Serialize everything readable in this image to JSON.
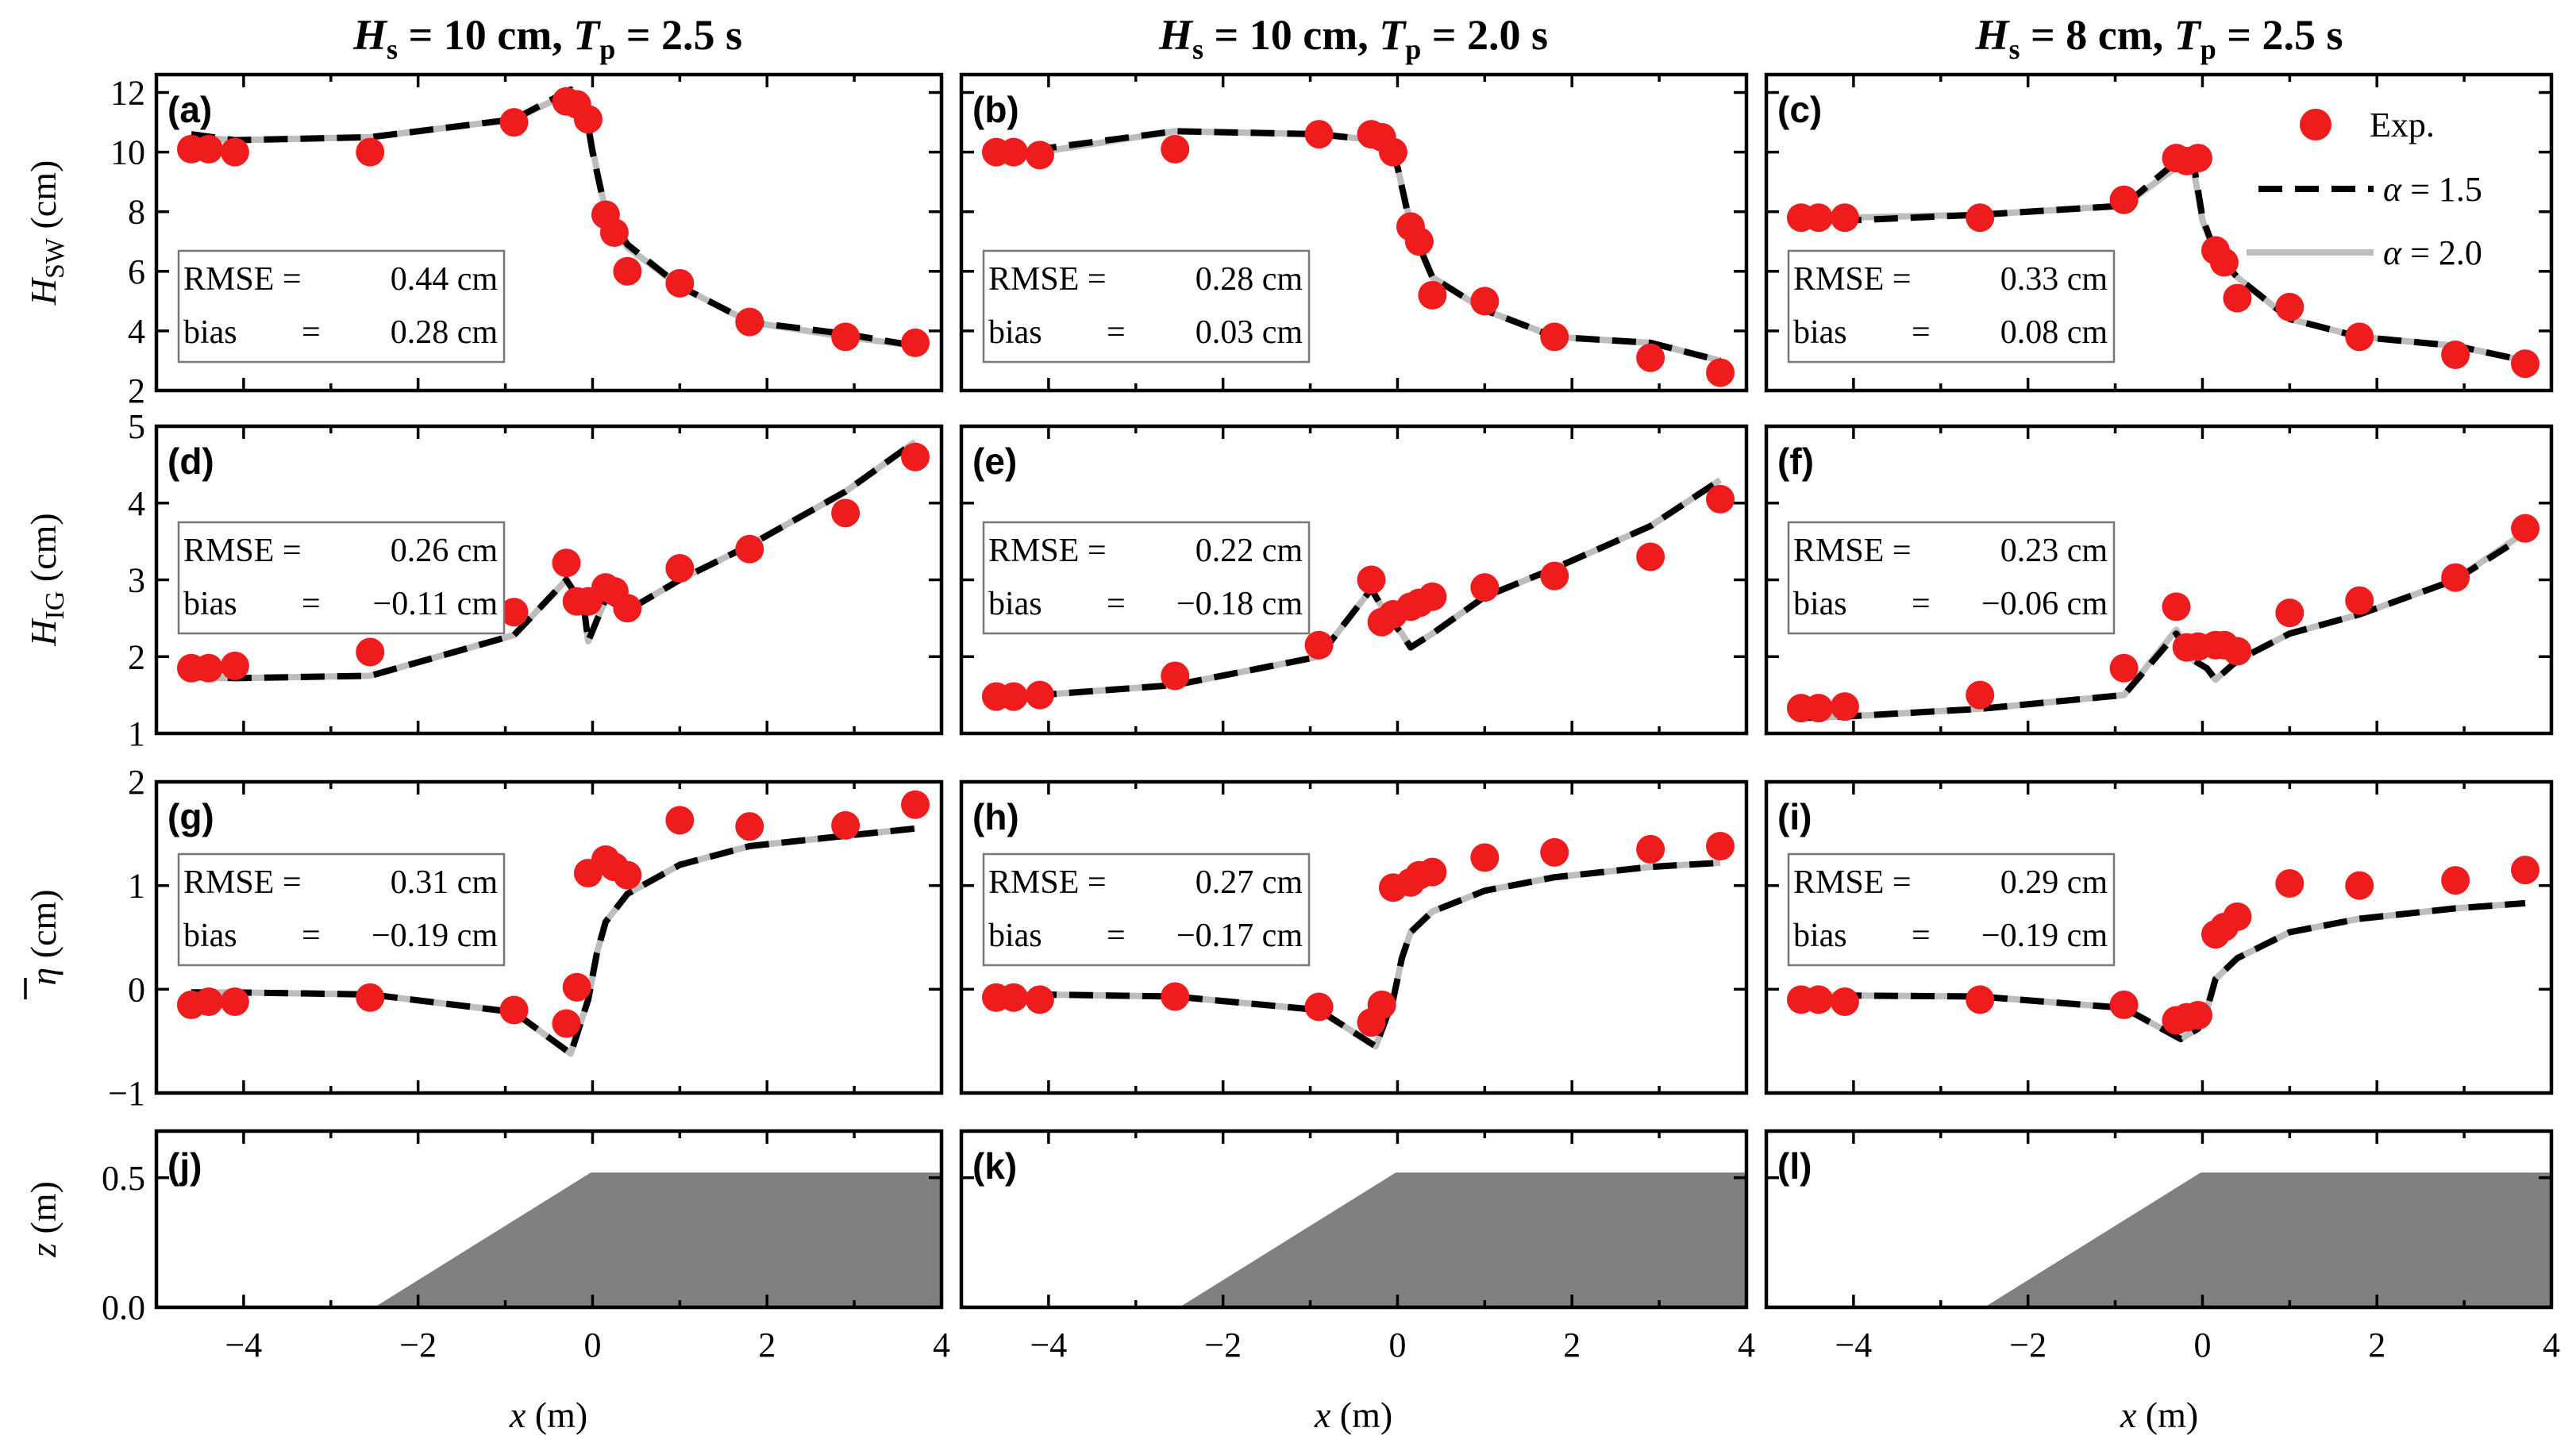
{
  "columns": [
    {
      "title": {
        "H": "H",
        "Hsub": "s",
        "Hval": " = 10 cm, ",
        "T": "T",
        "Tsub": "p",
        "Tval": " = 2.5 s"
      }
    },
    {
      "title": {
        "H": "H",
        "Hsub": "s",
        "Hval": " = 10 cm, ",
        "T": "T",
        "Tsub": "p",
        "Tval": " = 2.0 s"
      }
    },
    {
      "title": {
        "H": "H",
        "Hsub": "s",
        "Hval": " = 8 cm, ",
        "T": "T",
        "Tsub": "p",
        "Tval": " = 2.5 s"
      }
    }
  ],
  "rows": [
    {
      "id": "hsw",
      "ylabel_main": "H",
      "ylabel_sub": "SW",
      "ylabel_unit": " (cm)",
      "ylim": [
        2,
        12.6
      ],
      "yticks": [
        2,
        4,
        6,
        8,
        10,
        12
      ]
    },
    {
      "id": "hig",
      "ylabel_main": "H",
      "ylabel_sub": "IG",
      "ylabel_unit": " (cm)",
      "ylim": [
        1,
        5
      ],
      "yticks": [
        1,
        2,
        3,
        4,
        5
      ]
    },
    {
      "id": "eta",
      "ylabel_main": "η",
      "ylabel_sub": "",
      "ylabel_unit": " (cm)",
      "ylim": [
        -1,
        2
      ],
      "yticks": [
        -1,
        0,
        1,
        2
      ]
    },
    {
      "id": "z",
      "ylabel_main": "z",
      "ylabel_sub": "",
      "ylabel_unit": "  (m)",
      "ylim": [
        0,
        0.68
      ],
      "yticks": [
        0.0,
        0.5
      ],
      "ytick_labels": [
        "0.0",
        "0.5"
      ]
    }
  ],
  "xaxis": {
    "label_main": "x",
    "label_unit": " (m)",
    "xlim": [
      -5,
      4
    ],
    "xticks": [
      -4,
      -2,
      0,
      2,
      4
    ],
    "xtick_labels": [
      "−4",
      "−2",
      "0",
      "2",
      "4"
    ]
  },
  "legend": {
    "exp": "Exp.",
    "alpha15_main": "α",
    "alpha15_val": " = 1.5",
    "alpha20_main": "α",
    "alpha20_val": " = 2.0",
    "placement": "top-right of panel (c)"
  },
  "colors": {
    "exp": "#ee1c1c",
    "alpha15": "#000000",
    "alpha20": "#bdbdbd",
    "bed": "#808080"
  },
  "stat_labels": {
    "rmse": "RMSE =",
    "bias": "bias",
    "bias_eq": "="
  },
  "panels": [
    {
      "letter": "(a)",
      "rmse": "0.44 cm",
      "bias": "0.28 cm"
    },
    {
      "letter": "(b)",
      "rmse": "0.28 cm",
      "bias": "0.03 cm"
    },
    {
      "letter": "(c)",
      "rmse": "0.33 cm",
      "bias": "0.08 cm"
    },
    {
      "letter": "(d)",
      "rmse": "0.26 cm",
      "bias": "−0.11 cm"
    },
    {
      "letter": "(e)",
      "rmse": "0.22 cm",
      "bias": "−0.18 cm"
    },
    {
      "letter": "(f)",
      "rmse": "0.23 cm",
      "bias": "−0.06 cm"
    },
    {
      "letter": "(g)",
      "rmse": "0.31 cm",
      "bias": "−0.19 cm"
    },
    {
      "letter": "(h)",
      "rmse": "0.27 cm",
      "bias": "−0.17 cm"
    },
    {
      "letter": "(i)",
      "rmse": "0.29 cm",
      "bias": "−0.19 cm"
    },
    {
      "letter": "(j)"
    },
    {
      "letter": "(k)"
    },
    {
      "letter": "(l)"
    }
  ],
  "chart_data": {
    "type": "scatter",
    "description_grid": "4 rows x 3 columns of panels sharing x axis (m)",
    "bathymetry": {
      "x": [
        -5.0,
        -2.5,
        -0.02,
        4.0
      ],
      "z": [
        0.0,
        0.0,
        0.52,
        0.52
      ]
    },
    "panels": [
      {
        "letter": "(a)",
        "exp": {
          "x": [
            -4.6,
            -4.4,
            -4.1,
            -2.55,
            -0.9,
            -0.3,
            -0.18,
            -0.05,
            0.15,
            0.25,
            0.4,
            1.0,
            1.8,
            2.9,
            3.7
          ],
          "y": [
            10.1,
            10.1,
            10.0,
            10.0,
            11.0,
            11.7,
            11.6,
            11.1,
            7.9,
            7.3,
            6.0,
            5.6,
            4.3,
            3.8,
            3.6
          ]
        },
        "alpha15": {
          "x": [
            -4.6,
            -4.1,
            -2.55,
            -0.9,
            -0.25,
            -0.1,
            0.0,
            0.15,
            0.4,
            1.0,
            1.8,
            2.9,
            3.7
          ],
          "y": [
            10.6,
            10.4,
            10.5,
            11.1,
            12.1,
            11.7,
            10.0,
            8.0,
            6.9,
            5.5,
            4.3,
            3.9,
            3.5
          ]
        },
        "alpha20": {
          "x": [
            -4.6,
            -4.1,
            -2.55,
            -0.9,
            -0.25,
            -0.1,
            0.0,
            0.15,
            0.4,
            1.0,
            1.8,
            2.9,
            3.7
          ],
          "y": [
            10.5,
            10.4,
            10.5,
            11.1,
            12.0,
            11.8,
            10.1,
            8.0,
            6.8,
            5.5,
            4.3,
            3.8,
            3.5
          ]
        }
      },
      {
        "letter": "(b)",
        "exp": {
          "x": [
            -4.6,
            -4.4,
            -4.1,
            -2.55,
            -0.9,
            -0.3,
            -0.18,
            -0.05,
            0.15,
            0.25,
            0.4,
            1.0,
            1.8,
            2.9,
            3.7
          ],
          "y": [
            10.0,
            10.0,
            9.9,
            10.1,
            10.6,
            10.6,
            10.5,
            10.0,
            7.5,
            7.0,
            5.2,
            5.0,
            3.8,
            3.1,
            2.6
          ]
        },
        "alpha15": {
          "x": [
            -4.6,
            -4.1,
            -2.55,
            -0.9,
            -0.25,
            -0.1,
            0.0,
            0.15,
            0.4,
            1.0,
            1.8,
            2.9,
            3.7
          ],
          "y": [
            10.1,
            10.1,
            10.7,
            10.6,
            10.4,
            10.3,
            9.5,
            7.5,
            5.8,
            4.7,
            3.8,
            3.6,
            3.0
          ]
        },
        "alpha20": {
          "x": [
            -4.6,
            -4.1,
            -2.55,
            -0.9,
            -0.25,
            -0.1,
            0.0,
            0.15,
            0.4,
            1.0,
            1.8,
            2.9,
            3.7
          ],
          "y": [
            10.0,
            10.0,
            10.7,
            10.6,
            10.4,
            10.3,
            9.5,
            7.6,
            5.8,
            4.7,
            3.8,
            3.6,
            3.0
          ]
        }
      },
      {
        "letter": "(c)",
        "exp": {
          "x": [
            -4.6,
            -4.4,
            -4.1,
            -2.55,
            -0.9,
            -0.3,
            -0.18,
            -0.05,
            0.15,
            0.25,
            0.4,
            1.0,
            1.8,
            2.9,
            3.7
          ],
          "y": [
            7.8,
            7.8,
            7.8,
            7.8,
            8.4,
            9.8,
            9.7,
            9.8,
            6.7,
            6.3,
            5.1,
            4.8,
            3.8,
            3.2,
            2.9
          ]
        },
        "alpha15": {
          "x": [
            -4.6,
            -4.1,
            -2.55,
            -0.9,
            -0.25,
            -0.1,
            0.0,
            0.15,
            0.4,
            1.0,
            1.8,
            2.9,
            3.7
          ],
          "y": [
            7.8,
            7.7,
            7.9,
            8.2,
            9.8,
            9.6,
            7.8,
            6.6,
            5.8,
            4.4,
            3.8,
            3.5,
            3.0
          ]
        },
        "alpha20": {
          "x": [
            -4.6,
            -4.1,
            -2.55,
            -0.9,
            -0.25,
            -0.1,
            0.0,
            0.15,
            0.4,
            1.0,
            1.8,
            2.9,
            3.7
          ],
          "y": [
            7.9,
            7.8,
            7.9,
            8.2,
            9.6,
            9.4,
            7.7,
            6.6,
            5.8,
            4.4,
            3.8,
            3.5,
            3.0
          ]
        }
      },
      {
        "letter": "(d)",
        "exp": {
          "x": [
            -4.6,
            -4.4,
            -4.1,
            -2.55,
            -0.9,
            -0.3,
            -0.18,
            -0.05,
            0.15,
            0.25,
            0.4,
            1.0,
            1.8,
            2.9,
            3.7
          ],
          "y": [
            1.85,
            1.85,
            1.88,
            2.06,
            2.58,
            3.22,
            2.72,
            2.72,
            2.9,
            2.85,
            2.63,
            3.15,
            3.4,
            3.87,
            4.6
          ]
        },
        "alpha15": {
          "x": [
            -4.6,
            -4.1,
            -2.55,
            -0.9,
            -0.3,
            -0.1,
            -0.05,
            0.15,
            0.4,
            1.0,
            1.8,
            2.9,
            3.7
          ],
          "y": [
            1.74,
            1.72,
            1.75,
            2.28,
            3.0,
            2.65,
            2.2,
            2.75,
            2.6,
            3.0,
            3.45,
            4.15,
            4.8
          ]
        },
        "alpha20": {
          "x": [
            -4.6,
            -4.1,
            -2.55,
            -0.9,
            -0.3,
            -0.1,
            -0.05,
            0.15,
            0.4,
            1.0,
            1.8,
            2.9,
            3.7
          ],
          "y": [
            1.72,
            1.72,
            1.75,
            2.28,
            3.0,
            2.65,
            2.2,
            2.75,
            2.6,
            3.0,
            3.45,
            4.15,
            4.8
          ]
        }
      },
      {
        "letter": "(e)",
        "exp": {
          "x": [
            -4.6,
            -4.4,
            -4.1,
            -2.55,
            -0.9,
            -0.3,
            -0.18,
            -0.05,
            0.15,
            0.25,
            0.4,
            1.0,
            1.8,
            2.9,
            3.7
          ],
          "y": [
            1.48,
            1.48,
            1.5,
            1.75,
            2.15,
            3.0,
            2.45,
            2.55,
            2.65,
            2.7,
            2.78,
            2.9,
            3.05,
            3.3,
            4.05
          ]
        },
        "alpha15": {
          "x": [
            -4.6,
            -4.1,
            -2.55,
            -0.9,
            -0.3,
            -0.1,
            0.05,
            0.15,
            0.4,
            1.0,
            1.8,
            2.9,
            3.7
          ],
          "y": [
            1.48,
            1.5,
            1.63,
            2.0,
            2.88,
            2.5,
            2.3,
            2.12,
            2.3,
            2.78,
            3.15,
            3.7,
            4.3
          ]
        },
        "alpha20": {
          "x": [
            -4.6,
            -4.1,
            -2.55,
            -0.9,
            -0.3,
            -0.1,
            0.05,
            0.15,
            0.4,
            1.0,
            1.8,
            2.9,
            3.7
          ],
          "y": [
            1.48,
            1.5,
            1.63,
            2.0,
            2.88,
            2.5,
            2.3,
            2.12,
            2.3,
            2.78,
            3.15,
            3.7,
            4.3
          ]
        }
      },
      {
        "letter": "(f)",
        "exp": {
          "x": [
            -4.6,
            -4.4,
            -4.1,
            -2.55,
            -0.9,
            -0.3,
            -0.18,
            -0.05,
            0.15,
            0.25,
            0.4,
            1.0,
            1.8,
            2.9,
            3.7
          ],
          "y": [
            1.33,
            1.33,
            1.35,
            1.5,
            1.85,
            2.65,
            2.12,
            2.13,
            2.15,
            2.15,
            2.07,
            2.57,
            2.73,
            3.03,
            3.67
          ]
        },
        "alpha15": {
          "x": [
            -4.6,
            -4.1,
            -2.55,
            -0.9,
            -0.3,
            -0.1,
            0.05,
            0.15,
            0.4,
            1.0,
            1.8,
            2.9,
            3.7
          ],
          "y": [
            1.2,
            1.22,
            1.32,
            1.5,
            2.3,
            1.95,
            1.85,
            1.7,
            1.95,
            2.3,
            2.55,
            3.0,
            3.58
          ]
        },
        "alpha20": {
          "x": [
            -4.6,
            -4.1,
            -2.55,
            -0.9,
            -0.3,
            -0.1,
            0.05,
            0.15,
            0.4,
            1.0,
            1.8,
            2.9,
            3.7
          ],
          "y": [
            1.2,
            1.22,
            1.32,
            1.5,
            2.35,
            1.95,
            1.85,
            1.7,
            1.95,
            2.3,
            2.55,
            3.0,
            3.62
          ]
        }
      },
      {
        "letter": "(g)",
        "exp": {
          "x": [
            -4.6,
            -4.4,
            -4.1,
            -2.55,
            -0.9,
            -0.3,
            -0.18,
            -0.05,
            0.15,
            0.25,
            0.4,
            1.0,
            1.8,
            2.9,
            3.7
          ],
          "y": [
            -0.15,
            -0.12,
            -0.12,
            -0.08,
            -0.2,
            -0.33,
            0.02,
            1.12,
            1.25,
            1.18,
            1.1,
            1.63,
            1.57,
            1.58,
            1.78
          ]
        },
        "alpha15": {
          "x": [
            -4.6,
            -4.1,
            -2.55,
            -0.9,
            -0.25,
            -0.05,
            0.05,
            0.15,
            0.4,
            1.0,
            1.8,
            2.9,
            3.7
          ],
          "y": [
            -0.03,
            -0.03,
            -0.05,
            -0.22,
            -0.62,
            -0.1,
            0.35,
            0.65,
            0.92,
            1.2,
            1.38,
            1.48,
            1.55
          ]
        },
        "alpha20": {
          "x": [
            -4.6,
            -4.1,
            -2.55,
            -0.9,
            -0.25,
            -0.05,
            0.05,
            0.15,
            0.4,
            1.0,
            1.8,
            2.9,
            3.7
          ],
          "y": [
            -0.03,
            -0.03,
            -0.05,
            -0.22,
            -0.62,
            -0.1,
            0.35,
            0.65,
            0.92,
            1.2,
            1.38,
            1.48,
            1.55
          ]
        }
      },
      {
        "letter": "(h)",
        "exp": {
          "x": [
            -4.6,
            -4.4,
            -4.1,
            -2.55,
            -0.9,
            -0.3,
            -0.18,
            -0.05,
            0.15,
            0.25,
            0.4,
            1.0,
            1.8,
            2.9,
            3.7
          ],
          "y": [
            -0.08,
            -0.08,
            -0.1,
            -0.07,
            -0.17,
            -0.32,
            -0.15,
            0.98,
            1.03,
            1.1,
            1.13,
            1.27,
            1.32,
            1.35,
            1.38
          ]
        },
        "alpha15": {
          "x": [
            -4.6,
            -4.1,
            -2.55,
            -0.9,
            -0.25,
            -0.05,
            0.05,
            0.15,
            0.4,
            1.0,
            1.8,
            2.9,
            3.7
          ],
          "y": [
            -0.05,
            -0.05,
            -0.07,
            -0.2,
            -0.55,
            -0.1,
            0.3,
            0.55,
            0.75,
            0.95,
            1.08,
            1.18,
            1.22
          ]
        },
        "alpha20": {
          "x": [
            -4.6,
            -4.1,
            -2.55,
            -0.9,
            -0.25,
            -0.05,
            0.05,
            0.15,
            0.4,
            1.0,
            1.8,
            2.9,
            3.7
          ],
          "y": [
            -0.05,
            -0.05,
            -0.07,
            -0.2,
            -0.55,
            -0.1,
            0.3,
            0.55,
            0.75,
            0.95,
            1.08,
            1.18,
            1.22
          ]
        }
      },
      {
        "letter": "(i)",
        "exp": {
          "x": [
            -4.6,
            -4.4,
            -4.1,
            -2.55,
            -0.9,
            -0.3,
            -0.18,
            -0.05,
            0.15,
            0.25,
            0.4,
            1.0,
            1.8,
            2.9,
            3.7
          ],
          "y": [
            -0.1,
            -0.1,
            -0.12,
            -0.1,
            -0.15,
            -0.3,
            -0.27,
            -0.25,
            0.53,
            0.6,
            0.7,
            1.02,
            1.0,
            1.05,
            1.15
          ]
        },
        "alpha15": {
          "x": [
            -4.6,
            -4.1,
            -2.55,
            -0.9,
            -0.25,
            -0.05,
            0.05,
            0.15,
            0.4,
            1.0,
            1.8,
            2.9,
            3.7
          ],
          "y": [
            -0.05,
            -0.06,
            -0.07,
            -0.18,
            -0.48,
            -0.38,
            -0.2,
            0.1,
            0.3,
            0.55,
            0.68,
            0.78,
            0.83
          ]
        },
        "alpha20": {
          "x": [
            -4.6,
            -4.1,
            -2.55,
            -0.9,
            -0.25,
            -0.05,
            0.05,
            0.15,
            0.4,
            1.0,
            1.8,
            2.9,
            3.7
          ],
          "y": [
            -0.05,
            -0.06,
            -0.07,
            -0.18,
            -0.48,
            -0.38,
            -0.2,
            0.1,
            0.3,
            0.55,
            0.68,
            0.78,
            0.83
          ]
        }
      }
    ]
  }
}
